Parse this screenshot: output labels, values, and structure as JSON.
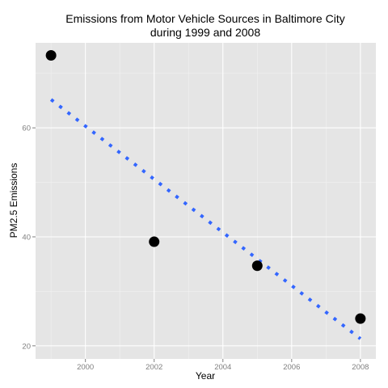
{
  "chart_data": {
    "type": "scatter",
    "title_line1": "Emissions from Motor Vehicle Sources in Baltimore City",
    "title_line2": "during 1999 and 2008",
    "xlabel": "Year",
    "ylabel": "PM2.5 Emissions",
    "x_ticks": [
      "2000",
      "2002",
      "2004",
      "2006",
      "2008"
    ],
    "x_tick_values": [
      2000,
      2002,
      2004,
      2006,
      2008
    ],
    "y_ticks": [
      "20",
      "40",
      "60"
    ],
    "y_tick_values": [
      20,
      40,
      60
    ],
    "xlim": [
      1998.55,
      2008.45
    ],
    "ylim": [
      17.6,
      75.6
    ],
    "grid": true,
    "series": [
      {
        "type": "points",
        "x": [
          1999,
          2002,
          2005,
          2008
        ],
        "y": [
          73.3,
          39.1,
          34.7,
          25.0
        ],
        "color": "#000000"
      },
      {
        "type": "trend-line",
        "style": "dotted",
        "x": [
          1999,
          2008
        ],
        "y": [
          65.2,
          21.3
        ],
        "color": "#3366ff"
      }
    ],
    "colors": {
      "panel_bg": "#e5e5e5",
      "grid_major": "#ffffff",
      "grid_minor": "#f2f2f2"
    }
  }
}
